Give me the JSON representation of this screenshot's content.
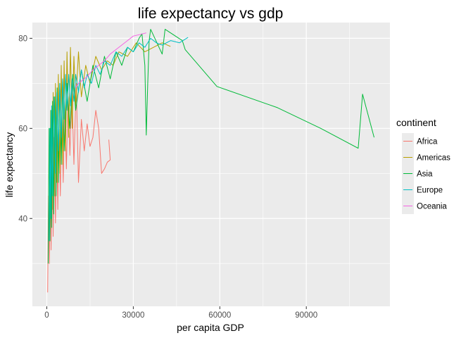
{
  "chart_data": {
    "type": "line",
    "title": "life expectancy vs gdp",
    "xlabel": "per capita GDP",
    "ylabel": "life expectancy",
    "xlim": [
      -5000,
      119000
    ],
    "ylim": [
      20.5,
      83.5
    ],
    "xticks": [
      0,
      30000,
      60000,
      90000
    ],
    "xtick_labels": [
      "0",
      "30000",
      "60000",
      "90000"
    ],
    "yticks": [
      40,
      60,
      80
    ],
    "ytick_labels": [
      "40",
      "60",
      "80"
    ],
    "panel_background": "#ebebeb",
    "grid": true,
    "legend": {
      "title": "continent",
      "position": "right"
    },
    "series": [
      {
        "name": "Africa",
        "color": "#F8766D",
        "x": [
          300,
          600,
          900,
          1200,
          1500,
          1800,
          2200,
          2600,
          3000,
          3400,
          3800,
          4200,
          4700,
          5200,
          5700,
          6200,
          6800,
          7400,
          8000,
          8700,
          9400,
          10200,
          11000,
          12000,
          13000,
          14000,
          15000,
          16000,
          17000,
          18000,
          19000,
          20000,
          21000,
          22000,
          21500
        ],
        "y": [
          23.6,
          45,
          30,
          50,
          33,
          55,
          36,
          58,
          39,
          60,
          42,
          62,
          45,
          64,
          48,
          66,
          51,
          67,
          54,
          69,
          52,
          70,
          48,
          62,
          55,
          61,
          56,
          58,
          64,
          60,
          50,
          51,
          52.5,
          53,
          57.5
        ]
      },
      {
        "name": "Americas",
        "color": "#B79F00",
        "x": [
          1000,
          1400,
          1800,
          2200,
          2600,
          3000,
          3500,
          4000,
          4500,
          5000,
          5500,
          6000,
          6500,
          7000,
          7600,
          8200,
          8800,
          9400,
          10000,
          11000,
          12000,
          13500,
          15000,
          17000,
          19000,
          21000,
          23000,
          25000,
          28000,
          31000,
          34000,
          37000,
          40000,
          42900
        ],
        "y": [
          38,
          64,
          42,
          68,
          45,
          70,
          48,
          72,
          50,
          74,
          52,
          75,
          55,
          77,
          58,
          78,
          60,
          76,
          65,
          77,
          67,
          74,
          70,
          76,
          73,
          75,
          74,
          77,
          76,
          79,
          77,
          78,
          79,
          78.2
        ]
      },
      {
        "name": "Asia",
        "color": "#00BA38",
        "x": [
          500,
          800,
          1100,
          1400,
          1700,
          2000,
          2400,
          2800,
          3200,
          3600,
          4000,
          4500,
          5000,
          5500,
          6000,
          7000,
          8000,
          9000,
          10000,
          12000,
          14000,
          16000,
          18000,
          20000,
          22000,
          24000,
          26000,
          28000,
          30000,
          32000,
          33000,
          34000,
          34500,
          35000,
          35500,
          36000,
          40000,
          41000,
          47000,
          48000,
          59000,
          80000,
          95000,
          108000,
          109500,
          113500
        ],
        "y": [
          30,
          60,
          35,
          64,
          38,
          66,
          41,
          67,
          45,
          69,
          48,
          70,
          52,
          71,
          55,
          70,
          60,
          72,
          64,
          73,
          66,
          74,
          69,
          76,
          71,
          77,
          74,
          78,
          77,
          80,
          81,
          74,
          58.5,
          70,
          79.5,
          82,
          76.5,
          82,
          79.5,
          77.5,
          69.3,
          64.6,
          60,
          55.6,
          67.6,
          58.0
        ]
      },
      {
        "name": "Europe",
        "color": "#00BFC4",
        "x": [
          800,
          1100,
          1400,
          1700,
          2000,
          2500,
          3000,
          3500,
          4000,
          4500,
          5000,
          5500,
          6000,
          6500,
          7000,
          7600,
          8200,
          8800,
          9400,
          10000,
          11000,
          12000,
          13000,
          14000,
          15500,
          17000,
          18500,
          20000,
          22000,
          24000,
          26000,
          28000,
          30000,
          32000,
          34000,
          36000,
          38000,
          40000,
          43000,
          46000,
          49000
        ],
        "y": [
          35,
          60,
          40,
          65,
          45,
          67,
          50,
          68,
          55,
          70,
          58,
          71,
          62,
          72,
          64,
          72,
          65,
          71,
          66,
          72,
          68,
          73,
          69,
          72,
          70,
          74,
          72,
          75,
          74,
          77,
          76,
          78,
          77,
          79,
          78,
          80,
          79,
          78.5,
          79.5,
          79,
          80.2
        ]
      },
      {
        "name": "Oceania",
        "color": "#F564E3",
        "x": [
          10000,
          11000,
          12000,
          13000,
          14000,
          16000,
          18000,
          20000,
          22000,
          24000,
          26000,
          28000,
          30000,
          32000,
          34500
        ],
        "y": [
          69,
          70,
          70.5,
          71,
          71.5,
          73,
          74,
          75,
          76.5,
          77.5,
          78.5,
          79.5,
          80.5,
          80.8,
          81.2
        ]
      }
    ]
  }
}
